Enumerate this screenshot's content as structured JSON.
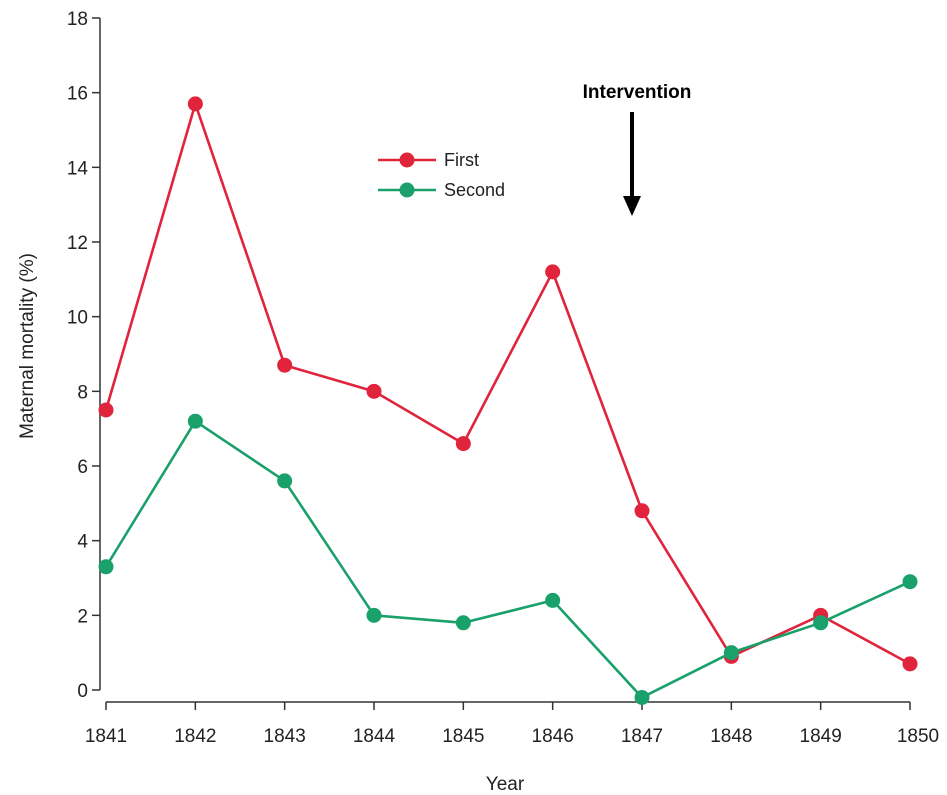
{
  "chart_data": {
    "type": "line",
    "xlabel": "Year",
    "ylabel": "Maternal mortality (%)",
    "x": [
      "1841",
      "1842",
      "1843",
      "1844",
      "1845",
      "1846",
      "1847",
      "1848",
      "1849",
      "1850"
    ],
    "ylim": [
      0,
      18
    ],
    "yticks": [
      0,
      2,
      4,
      6,
      8,
      10,
      12,
      14,
      16,
      18
    ],
    "grid": false,
    "legend_position": "top-center",
    "series": [
      {
        "name": "First",
        "color": "#e0243c",
        "values": [
          7.5,
          15.7,
          8.7,
          8.0,
          6.6,
          11.2,
          4.8,
          0.9,
          2.0,
          0.7
        ]
      },
      {
        "name": "Second",
        "color": "#1aa06a",
        "values": [
          3.3,
          7.2,
          5.6,
          2.0,
          1.8,
          2.4,
          -0.2,
          1.0,
          1.8,
          2.9
        ]
      }
    ],
    "annotation": {
      "text": "Intervention",
      "x": "1847",
      "icon": "arrow-down-icon"
    }
  }
}
